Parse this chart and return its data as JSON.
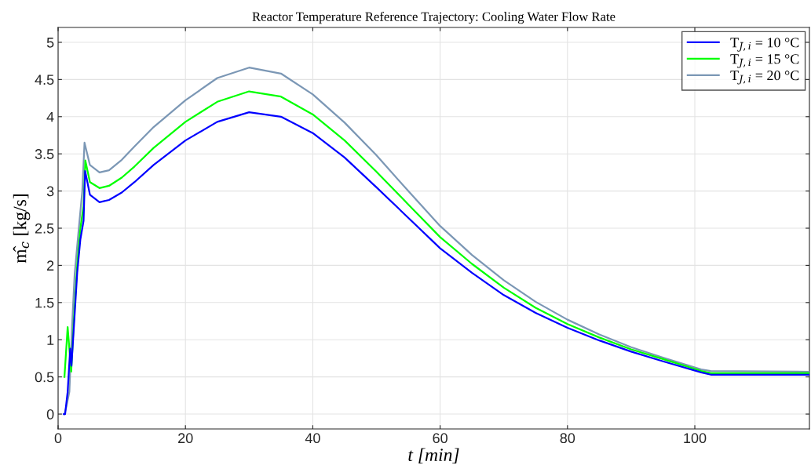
{
  "chart_data": {
    "type": "line",
    "title": "Reactor Temperature Reference Trajectory: Cooling Water Flow Rate",
    "xlabel": "t [min]",
    "ylabel": "m̂$_{c}$ [kg/s]",
    "xlim": [
      0,
      118
    ],
    "xticks": [
      0,
      20,
      40,
      60,
      80,
      100
    ],
    "ylim": [
      -0.2,
      5.2
    ],
    "yticks": [
      0,
      0.5,
      1,
      1.5,
      2,
      2.5,
      3,
      3.5,
      4,
      4.5,
      5
    ],
    "grid": true,
    "legend": "top right",
    "line_style": "solid",
    "marker": "none",
    "series": [
      {
        "name": "T$_{J,i}$ = 10 °C",
        "color": "#0000ff",
        "x": [
          0.9,
          1.1,
          1.5,
          1.9,
          2.1,
          2.5,
          3.0,
          3.5,
          4.0,
          4.24,
          5.0,
          6.5,
          8,
          10,
          12,
          15,
          20,
          25,
          30,
          35,
          40,
          45,
          50,
          55,
          60,
          65,
          70,
          75,
          80,
          85,
          90,
          95,
          101,
          102.5,
          118
        ],
        "values": [
          0,
          0,
          0.3,
          0.88,
          0.65,
          1.2,
          1.9,
          2.35,
          2.6,
          3.27,
          2.95,
          2.85,
          2.88,
          2.98,
          3.12,
          3.35,
          3.68,
          3.93,
          4.06,
          4.0,
          3.78,
          3.45,
          3.05,
          2.64,
          2.23,
          1.9,
          1.6,
          1.36,
          1.16,
          0.99,
          0.84,
          0.71,
          0.56,
          0.53,
          0.53
        ]
      },
      {
        "name": "T$_{J,i}$ = 15 °C",
        "color": "#00ff00",
        "x": [
          1.0,
          1.5,
          2.06,
          2.5,
          3.0,
          3.5,
          4.0,
          4.28,
          5.0,
          6.5,
          8,
          10,
          12,
          15,
          20,
          25,
          30,
          35,
          40,
          45,
          50,
          55,
          60,
          65,
          70,
          75,
          80,
          85,
          90,
          95,
          101,
          102.5,
          118
        ],
        "values": [
          0.5,
          1.17,
          0.57,
          1.3,
          2.0,
          2.5,
          2.8,
          3.41,
          3.12,
          3.04,
          3.07,
          3.18,
          3.33,
          3.58,
          3.93,
          4.2,
          4.34,
          4.27,
          4.03,
          3.68,
          3.26,
          2.82,
          2.38,
          2.02,
          1.7,
          1.43,
          1.21,
          1.03,
          0.87,
          0.74,
          0.58,
          0.55,
          0.55
        ]
      },
      {
        "name": "T$_{J,i}$ = 20 °C",
        "color": "#7b97b5",
        "x": [
          1.0,
          1.3,
          1.77,
          2.2,
          2.6,
          3.2,
          3.8,
          4.15,
          5.0,
          6.5,
          8,
          10,
          12,
          15,
          20,
          25,
          30,
          35,
          40,
          45,
          50,
          55,
          60,
          65,
          70,
          75,
          80,
          85,
          90,
          95,
          101,
          102.5,
          118
        ],
        "values": [
          0,
          0.1,
          0.3,
          1.2,
          1.88,
          2.45,
          3.0,
          3.65,
          3.35,
          3.25,
          3.28,
          3.42,
          3.6,
          3.86,
          4.22,
          4.52,
          4.66,
          4.58,
          4.3,
          3.92,
          3.48,
          3.0,
          2.53,
          2.14,
          1.8,
          1.51,
          1.27,
          1.07,
          0.9,
          0.76,
          0.6,
          0.58,
          0.57
        ]
      }
    ]
  }
}
